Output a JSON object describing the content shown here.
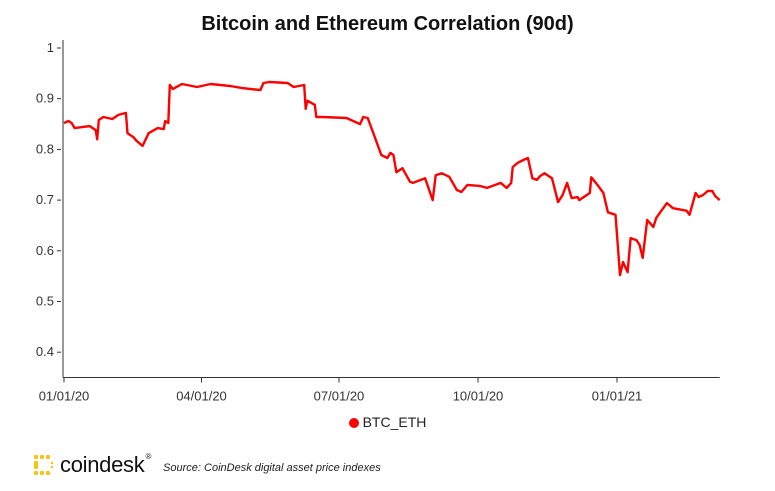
{
  "chart_data": {
    "type": "line",
    "title": "Bitcoin and Ethereum Correlation (90d)",
    "xlabel": "",
    "ylabel": "",
    "ylim": [
      0.35,
      1
    ],
    "yticks": [
      0.4,
      0.5,
      0.6,
      0.7,
      0.8,
      0.9,
      1
    ],
    "ytick_labels": [
      "0.4",
      "0.5",
      "0.6",
      "0.7",
      "0.8",
      "0.9",
      "1"
    ],
    "x_unit": "days since 01/01/20",
    "xlim": [
      0,
      434
    ],
    "xticks": [
      0,
      91,
      182,
      274,
      366
    ],
    "xtick_labels": [
      "01/01/20",
      "04/01/20",
      "07/01/20",
      "10/01/20",
      "01/01/21"
    ],
    "legend_position": "bottom-center",
    "grid": false,
    "series": [
      {
        "name": "BTC_ETH",
        "color": "#ff0000",
        "x": [
          0,
          3,
          5,
          7,
          17,
          21,
          22,
          23,
          26,
          32,
          36,
          41,
          42,
          46,
          48,
          52,
          56,
          62,
          66,
          67,
          69,
          70,
          72,
          78,
          88,
          97,
          110,
          118,
          130,
          132,
          136,
          148,
          152,
          159,
          160,
          161,
          166,
          167,
          171,
          187,
          196,
          198,
          201,
          204,
          210,
          214,
          216,
          218,
          220,
          224,
          229,
          231,
          239,
          244,
          246,
          250,
          255,
          260,
          263,
          267,
          275,
          280,
          289,
          293,
          296,
          297,
          300,
          304,
          307,
          310,
          313,
          315,
          318,
          323,
          327,
          330,
          333,
          336,
          340,
          341,
          348,
          349,
          353,
          357,
          360,
          365,
          368,
          370,
          373,
          375,
          379,
          381,
          383,
          386,
          390,
          392,
          399,
          403,
          412,
          414,
          418,
          420,
          423,
          426,
          429,
          431,
          434
        ],
        "values": [
          0.852,
          0.856,
          0.852,
          0.842,
          0.846,
          0.838,
          0.82,
          0.858,
          0.864,
          0.86,
          0.868,
          0.872,
          0.832,
          0.824,
          0.817,
          0.807,
          0.832,
          0.842,
          0.84,
          0.856,
          0.852,
          0.927,
          0.919,
          0.929,
          0.923,
          0.929,
          0.925,
          0.921,
          0.917,
          0.931,
          0.933,
          0.931,
          0.923,
          0.927,
          0.88,
          0.896,
          0.888,
          0.864,
          0.864,
          0.862,
          0.85,
          0.864,
          0.862,
          0.838,
          0.789,
          0.783,
          0.793,
          0.789,
          0.755,
          0.763,
          0.736,
          0.734,
          0.743,
          0.7,
          0.749,
          0.753,
          0.746,
          0.72,
          0.716,
          0.73,
          0.728,
          0.724,
          0.734,
          0.724,
          0.734,
          0.765,
          0.773,
          0.779,
          0.783,
          0.743,
          0.74,
          0.747,
          0.753,
          0.743,
          0.696,
          0.71,
          0.734,
          0.704,
          0.706,
          0.7,
          0.714,
          0.745,
          0.73,
          0.714,
          0.676,
          0.671,
          0.552,
          0.578,
          0.558,
          0.625,
          0.621,
          0.611,
          0.586,
          0.661,
          0.647,
          0.665,
          0.694,
          0.684,
          0.679,
          0.671,
          0.714,
          0.706,
          0.71,
          0.718,
          0.718,
          0.708,
          0.7
        ]
      }
    ]
  },
  "footer": {
    "brand": "coindesk",
    "registered": "®",
    "source": "Source: CoinDesk digital asset price indexes"
  },
  "colors": {
    "brand_yellow": "#f5c518",
    "line": "#ff0000"
  }
}
